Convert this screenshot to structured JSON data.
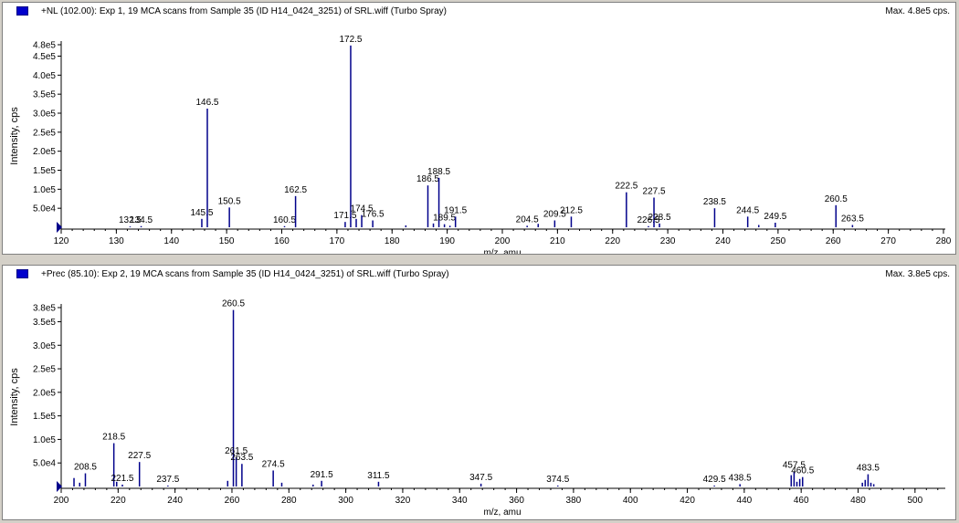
{
  "panels": [
    {
      "header": "+NL (102.00): Exp 1, 19 MCA scans from Sample 35 (ID H14_0424_3251) of SRL.wiff (Turbo Spray)",
      "max_label": "Max. 4.8e5 cps.",
      "chart_data": {
        "type": "bar",
        "ylabel": "Intensity, cps",
        "xlabel": "m/z, amu",
        "xlim": [
          120,
          280
        ],
        "ylim": [
          0,
          480000
        ],
        "x_ticks": [
          120,
          130,
          140,
          150,
          160,
          170,
          180,
          190,
          200,
          210,
          220,
          230,
          240,
          250,
          260,
          270,
          280
        ],
        "y_ticks": [
          {
            "v": 50000,
            "label": "5.0e4"
          },
          {
            "v": 100000,
            "label": "1.0e5"
          },
          {
            "v": 150000,
            "label": "1.5e5"
          },
          {
            "v": 200000,
            "label": "2.0e5"
          },
          {
            "v": 250000,
            "label": "2.5e5"
          },
          {
            "v": 300000,
            "label": "3.0e5"
          },
          {
            "v": 350000,
            "label": "3.5e5"
          },
          {
            "v": 400000,
            "label": "4.0e5"
          },
          {
            "v": 450000,
            "label": "4.5e5"
          },
          {
            "v": 480000,
            "label": "4.8e5"
          }
        ],
        "peaks": [
          {
            "x": 132.5,
            "y": 2000,
            "label": "132.5"
          },
          {
            "x": 134.5,
            "y": 3000,
            "label": "134.5"
          },
          {
            "x": 145.5,
            "y": 22000,
            "label": "145.5"
          },
          {
            "x": 146.5,
            "y": 312000,
            "label": "146.5"
          },
          {
            "x": 150.5,
            "y": 52000,
            "label": "150.5"
          },
          {
            "x": 160.5,
            "y": 3000,
            "label": "160.5"
          },
          {
            "x": 162.5,
            "y": 82000,
            "label": "162.5"
          },
          {
            "x": 171.5,
            "y": 14000,
            "label": "171.5"
          },
          {
            "x": 172.5,
            "y": 478000,
            "label": "172.5"
          },
          {
            "x": 173.5,
            "y": 22000
          },
          {
            "x": 174.5,
            "y": 32000,
            "label": "174.5"
          },
          {
            "x": 176.5,
            "y": 18000,
            "label": "176.5"
          },
          {
            "x": 182.5,
            "y": 5000
          },
          {
            "x": 186.5,
            "y": 110000,
            "label": "186.5"
          },
          {
            "x": 187.5,
            "y": 10000
          },
          {
            "x": 188.5,
            "y": 130000,
            "label": "188.5"
          },
          {
            "x": 189.5,
            "y": 8000,
            "label": "189.5"
          },
          {
            "x": 190.5,
            "y": 4000
          },
          {
            "x": 191.5,
            "y": 28000,
            "label": "191.5"
          },
          {
            "x": 204.5,
            "y": 4000,
            "label": "204.5"
          },
          {
            "x": 206.5,
            "y": 9000
          },
          {
            "x": 209.5,
            "y": 18000,
            "label": "209.5"
          },
          {
            "x": 212.5,
            "y": 28000,
            "label": "212.5"
          },
          {
            "x": 222.5,
            "y": 92000,
            "label": "222.5"
          },
          {
            "x": 226.5,
            "y": 3000,
            "label": "226.5"
          },
          {
            "x": 227.5,
            "y": 78000,
            "label": "227.5"
          },
          {
            "x": 228.5,
            "y": 10000,
            "label": "228.5"
          },
          {
            "x": 238.5,
            "y": 50000,
            "label": "238.5"
          },
          {
            "x": 244.5,
            "y": 28000,
            "label": "244.5"
          },
          {
            "x": 246.5,
            "y": 6000
          },
          {
            "x": 249.5,
            "y": 12000,
            "label": "249.5"
          },
          {
            "x": 260.5,
            "y": 58000,
            "label": "260.5"
          },
          {
            "x": 263.5,
            "y": 6000,
            "label": "263.5"
          }
        ]
      }
    },
    {
      "header": "+Prec (85.10): Exp 2, 19 MCA scans from Sample 35 (ID H14_0424_3251) of SRL.wiff (Turbo Spray)",
      "max_label": "Max. 3.8e5 cps.",
      "chart_data": {
        "type": "bar",
        "ylabel": "Intensity, cps",
        "xlabel": "m/z, amu",
        "xlim": [
          200,
          510
        ],
        "ylim": [
          0,
          380000
        ],
        "x_ticks": [
          200,
          220,
          240,
          260,
          280,
          300,
          320,
          340,
          360,
          380,
          400,
          420,
          440,
          460,
          480,
          500
        ],
        "y_ticks": [
          {
            "v": 50000,
            "label": "5.0e4"
          },
          {
            "v": 100000,
            "label": "1.0e5"
          },
          {
            "v": 150000,
            "label": "1.5e5"
          },
          {
            "v": 200000,
            "label": "2.0e5"
          },
          {
            "v": 250000,
            "label": "2.5e5"
          },
          {
            "v": 300000,
            "label": "3.0e5"
          },
          {
            "v": 350000,
            "label": "3.5e5"
          },
          {
            "v": 380000,
            "label": "3.8e5"
          }
        ],
        "peaks": [
          {
            "x": 204.5,
            "y": 18000
          },
          {
            "x": 206.5,
            "y": 8000
          },
          {
            "x": 208.5,
            "y": 28000,
            "label": "208.5"
          },
          {
            "x": 218.5,
            "y": 92000,
            "label": "218.5"
          },
          {
            "x": 219.5,
            "y": 10000
          },
          {
            "x": 221.5,
            "y": 4000,
            "label": "221.5"
          },
          {
            "x": 227.5,
            "y": 52000,
            "label": "227.5"
          },
          {
            "x": 237.5,
            "y": 2000,
            "label": "237.5"
          },
          {
            "x": 258.5,
            "y": 12000
          },
          {
            "x": 260.5,
            "y": 375000,
            "label": "260.5"
          },
          {
            "x": 261.5,
            "y": 62000,
            "label": "261.5"
          },
          {
            "x": 263.5,
            "y": 48000,
            "label": "263.5"
          },
          {
            "x": 274.5,
            "y": 34000,
            "label": "274.5"
          },
          {
            "x": 277.5,
            "y": 8000
          },
          {
            "x": 288.5,
            "y": 4000
          },
          {
            "x": 291.5,
            "y": 12000,
            "label": "291.5"
          },
          {
            "x": 311.5,
            "y": 10000,
            "label": "311.5"
          },
          {
            "x": 347.5,
            "y": 6000,
            "label": "347.5"
          },
          {
            "x": 374.5,
            "y": 2000,
            "label": "374.5"
          },
          {
            "x": 429.5,
            "y": 2000,
            "label": "429.5"
          },
          {
            "x": 438.5,
            "y": 5000,
            "label": "438.5"
          },
          {
            "x": 456.5,
            "y": 24000
          },
          {
            "x": 457.5,
            "y": 32000,
            "label": "457.5"
          },
          {
            "x": 458.5,
            "y": 10000
          },
          {
            "x": 459.5,
            "y": 16000
          },
          {
            "x": 460.5,
            "y": 20000,
            "label": "460.5"
          },
          {
            "x": 481.5,
            "y": 8000
          },
          {
            "x": 482.5,
            "y": 14000
          },
          {
            "x": 483.5,
            "y": 26000,
            "label": "483.5"
          },
          {
            "x": 484.5,
            "y": 8000
          },
          {
            "x": 485.5,
            "y": 5000
          }
        ]
      }
    }
  ]
}
